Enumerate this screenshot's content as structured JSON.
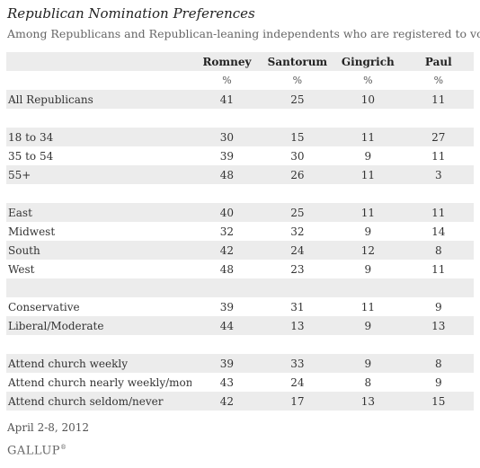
{
  "title": "Republican Nomination Preferences",
  "subtitle": "Among Republicans and Republican-leaning independents who are registered to vote",
  "footer": {
    "date": "April 2-8, 2012",
    "logo": "GALLUP"
  },
  "chart_data": {
    "type": "table",
    "columns": [
      "Romney",
      "Santorum",
      "Gingrich",
      "Paul"
    ],
    "unit_label": "%",
    "groups": [
      {
        "rows": [
          {
            "label": "All Republicans",
            "values": [
              41,
              25,
              10,
              11
            ]
          }
        ]
      },
      {
        "rows": [
          {
            "label": "18 to 34",
            "values": [
              30,
              15,
              11,
              27
            ]
          },
          {
            "label": "35 to 54",
            "values": [
              39,
              30,
              9,
              11
            ]
          },
          {
            "label": "55+",
            "values": [
              48,
              26,
              11,
              3
            ]
          }
        ]
      },
      {
        "rows": [
          {
            "label": "East",
            "values": [
              40,
              25,
              11,
              11
            ]
          },
          {
            "label": "Midwest",
            "values": [
              32,
              32,
              9,
              14
            ]
          },
          {
            "label": "South",
            "values": [
              42,
              24,
              12,
              8
            ]
          },
          {
            "label": "West",
            "values": [
              48,
              23,
              9,
              11
            ]
          }
        ]
      },
      {
        "rows": [
          {
            "label": "Conservative",
            "values": [
              39,
              31,
              11,
              9
            ]
          },
          {
            "label": "Liberal/Moderate",
            "values": [
              44,
              13,
              9,
              13
            ]
          }
        ]
      },
      {
        "rows": [
          {
            "label": "Attend church weekly",
            "values": [
              39,
              33,
              9,
              8
            ]
          },
          {
            "label": "Attend church nearly weekly/monthly",
            "values": [
              43,
              24,
              8,
              9
            ]
          },
          {
            "label": "Attend church seldom/never",
            "values": [
              42,
              17,
              13,
              15
            ]
          }
        ]
      }
    ]
  }
}
